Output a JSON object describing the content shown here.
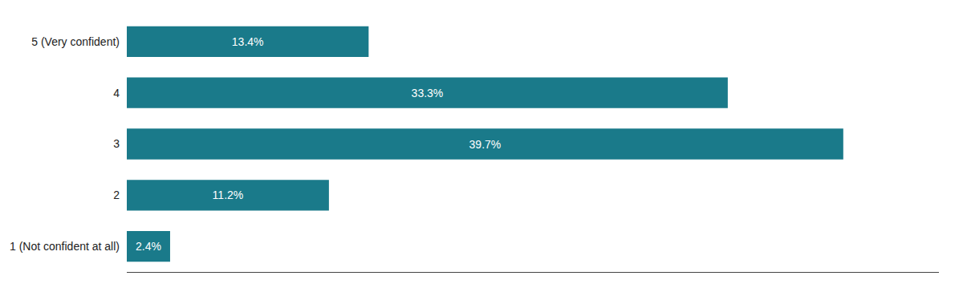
{
  "chart_data": {
    "type": "bar",
    "orientation": "horizontal",
    "categories": [
      "5 (Very confident)",
      "4",
      "3",
      "2",
      "1 (Not confident at all)"
    ],
    "values": [
      13.4,
      33.3,
      39.7,
      11.2,
      2.4
    ],
    "value_labels": [
      "13.4%",
      "33.3%",
      "39.7%",
      "11.2%",
      "2.4%"
    ],
    "color": "#1a7a8a",
    "data_labels": true,
    "xlim": [
      0,
      45
    ],
    "grid": false,
    "tick_labels": "y"
  }
}
